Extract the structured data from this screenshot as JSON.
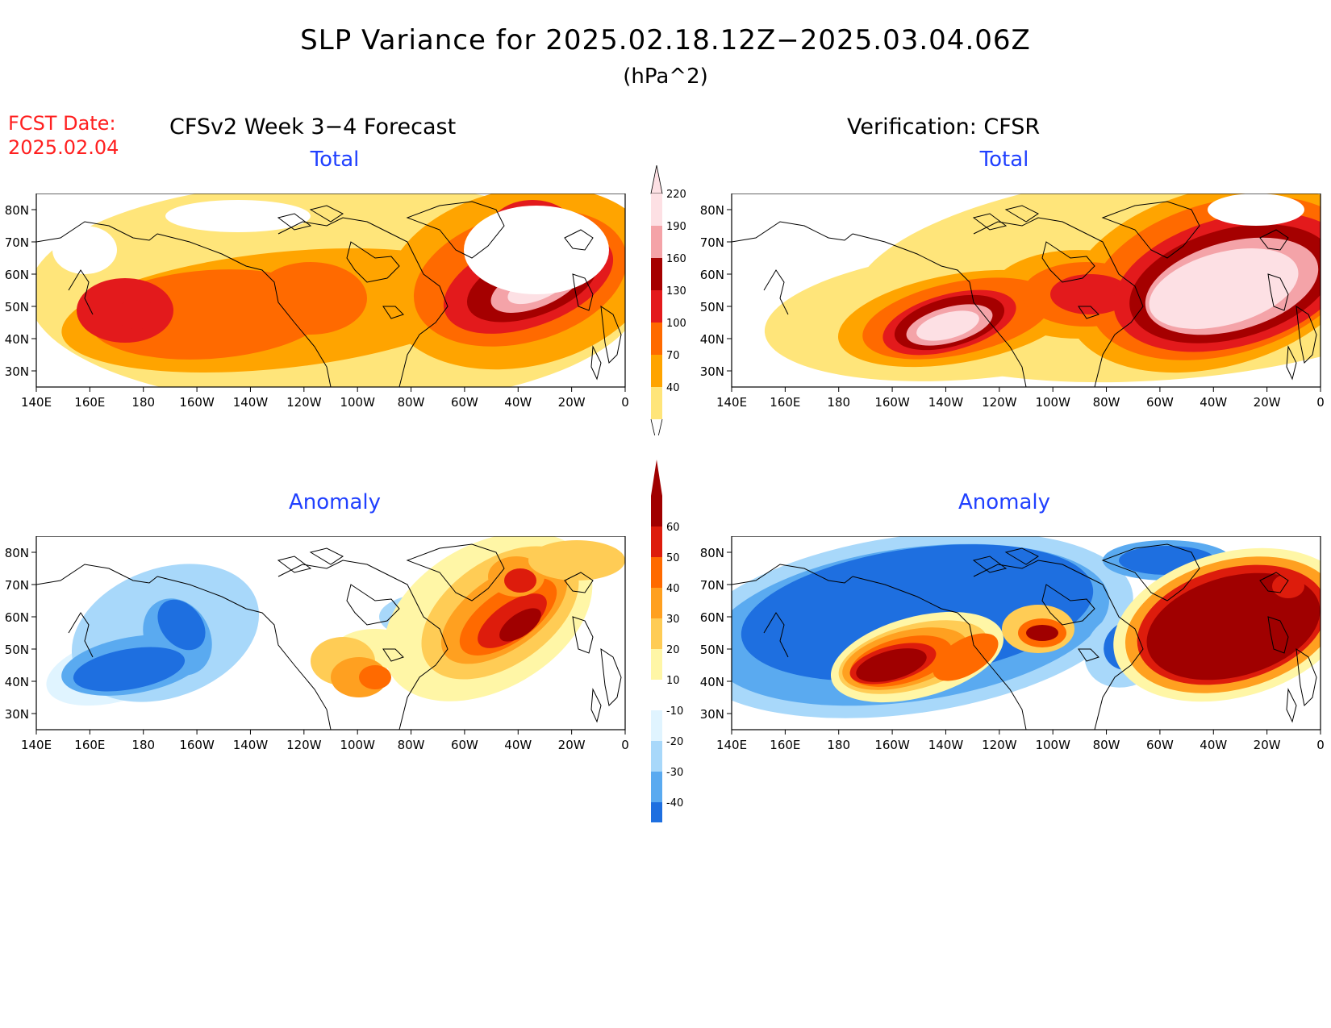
{
  "title": "SLP Variance for 2025.02.18.12Z−2025.03.04.06Z",
  "units": "(hPa^2)",
  "fcst_label": "FCST Date:",
  "fcst_date": "2025.02.04",
  "left_header": "CFSv2 Week 3−4 Forecast",
  "right_header": "Verification: CFSR",
  "panel_titles": {
    "total": "Total",
    "anomaly": "Anomaly"
  },
  "lat_labels": [
    "80N",
    "70N",
    "60N",
    "50N",
    "40N",
    "30N"
  ],
  "lon_labels": [
    "140E",
    "160E",
    "180",
    "160W",
    "140W",
    "120W",
    "100W",
    "80W",
    "60W",
    "40W",
    "20W",
    "0"
  ],
  "total_colorbar": {
    "levels": [
      40,
      70,
      100,
      130,
      160,
      190,
      220
    ],
    "colors": [
      "#ffe57a",
      "#ffa400",
      "#ff6a00",
      "#e31a1c",
      "#a50000",
      "#f4a3a8",
      "#fde0e4"
    ]
  },
  "anomaly_colorbar": {
    "levels": [
      -40,
      -30,
      -20,
      -10,
      10,
      20,
      30,
      40,
      50,
      60
    ],
    "colors": [
      "#0a4fc4",
      "#1e6fe0",
      "#5aaaf0",
      "#a8d8fa",
      "#e0f4ff",
      "#ffffff",
      "#fff6a6",
      "#ffcc55",
      "#ffa020",
      "#ff6a00",
      "#dd1c0c",
      "#a00000"
    ]
  },
  "fill_colors": {
    "tot": [
      "#ffe57a",
      "#ffa400",
      "#ff6a00",
      "#e31a1c",
      "#a50000",
      "#f4a3a8",
      "#fde0e4"
    ],
    "pos": [
      "#fff6a6",
      "#ffcc55",
      "#ffa020",
      "#ff6a00",
      "#dd1c0c",
      "#a00000"
    ],
    "neg": [
      "#e0f4ff",
      "#a8d8fa",
      "#5aaaf0",
      "#1e6fe0"
    ]
  }
}
